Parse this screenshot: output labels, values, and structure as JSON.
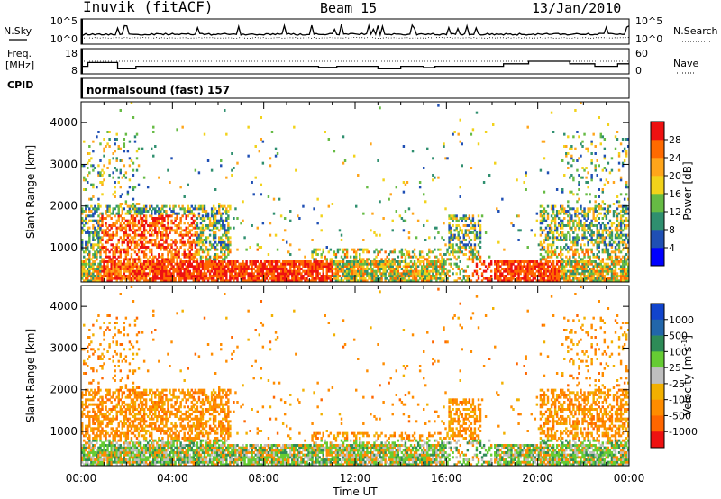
{
  "header": {
    "title": "Inuvik (fitACF)",
    "beam": "Beam 15",
    "date": "13/Jan/2010"
  },
  "top_panels": {
    "nsky": {
      "left_label": "N.Sky",
      "right_label": "N.Search",
      "left_ticks": [
        "10^5",
        "10^0"
      ],
      "right_ticks": [
        "10^5",
        "10^0"
      ]
    },
    "freq": {
      "left_label_1": "Freq.",
      "left_label_2": "[MHz]",
      "left_ticks": [
        "18",
        "8"
      ],
      "right_label": "Nave",
      "right_ticks": [
        "60",
        "0"
      ],
      "cpid_label": "CPID"
    },
    "cpid_text": "normalsound (fast) 157"
  },
  "chart_data": [
    {
      "type": "heatmap",
      "name": "power",
      "ylabel": "Slant Range [km]",
      "yticks": [
        1000,
        2000,
        3000,
        4000
      ],
      "ylim": [
        180,
        4500
      ],
      "xlim": [
        0,
        24
      ],
      "colorbar": {
        "label": "Power [dB]",
        "ticks": [
          4,
          8,
          12,
          16,
          20,
          24,
          28
        ],
        "colors": [
          "#0000ff",
          "#1f4fb4",
          "#2f8f6f",
          "#66bb44",
          "#f2d21a",
          "#ffa51a",
          "#ff6a00",
          "#ee1111"
        ],
        "range": [
          0,
          32
        ]
      }
    },
    {
      "type": "heatmap",
      "name": "velocity",
      "ylabel": "Slant Range [km]",
      "yticks": [
        1000,
        2000,
        3000,
        4000
      ],
      "ylim": [
        180,
        4500
      ],
      "xlim": [
        0,
        24
      ],
      "xlabel": "Time UT",
      "xticks": [
        "00:00",
        "04:00",
        "08:00",
        "12:00",
        "16:00",
        "20:00",
        "00:00"
      ],
      "colorbar": {
        "label": "Velocity [m s^-1]",
        "label_main": "Velocity [m s",
        "label_sup": "-1",
        "label_end": "]",
        "ticks": [
          "1000",
          "500",
          "100",
          "25",
          "-25",
          "-100",
          "-500",
          "-1000"
        ],
        "colors": [
          "#1144cc",
          "#2266aa",
          "#2e8b57",
          "#66cc33",
          "#bfbfbf",
          "#f2b000",
          "#ff8c00",
          "#ff6600",
          "#ee1111"
        ]
      }
    }
  ]
}
